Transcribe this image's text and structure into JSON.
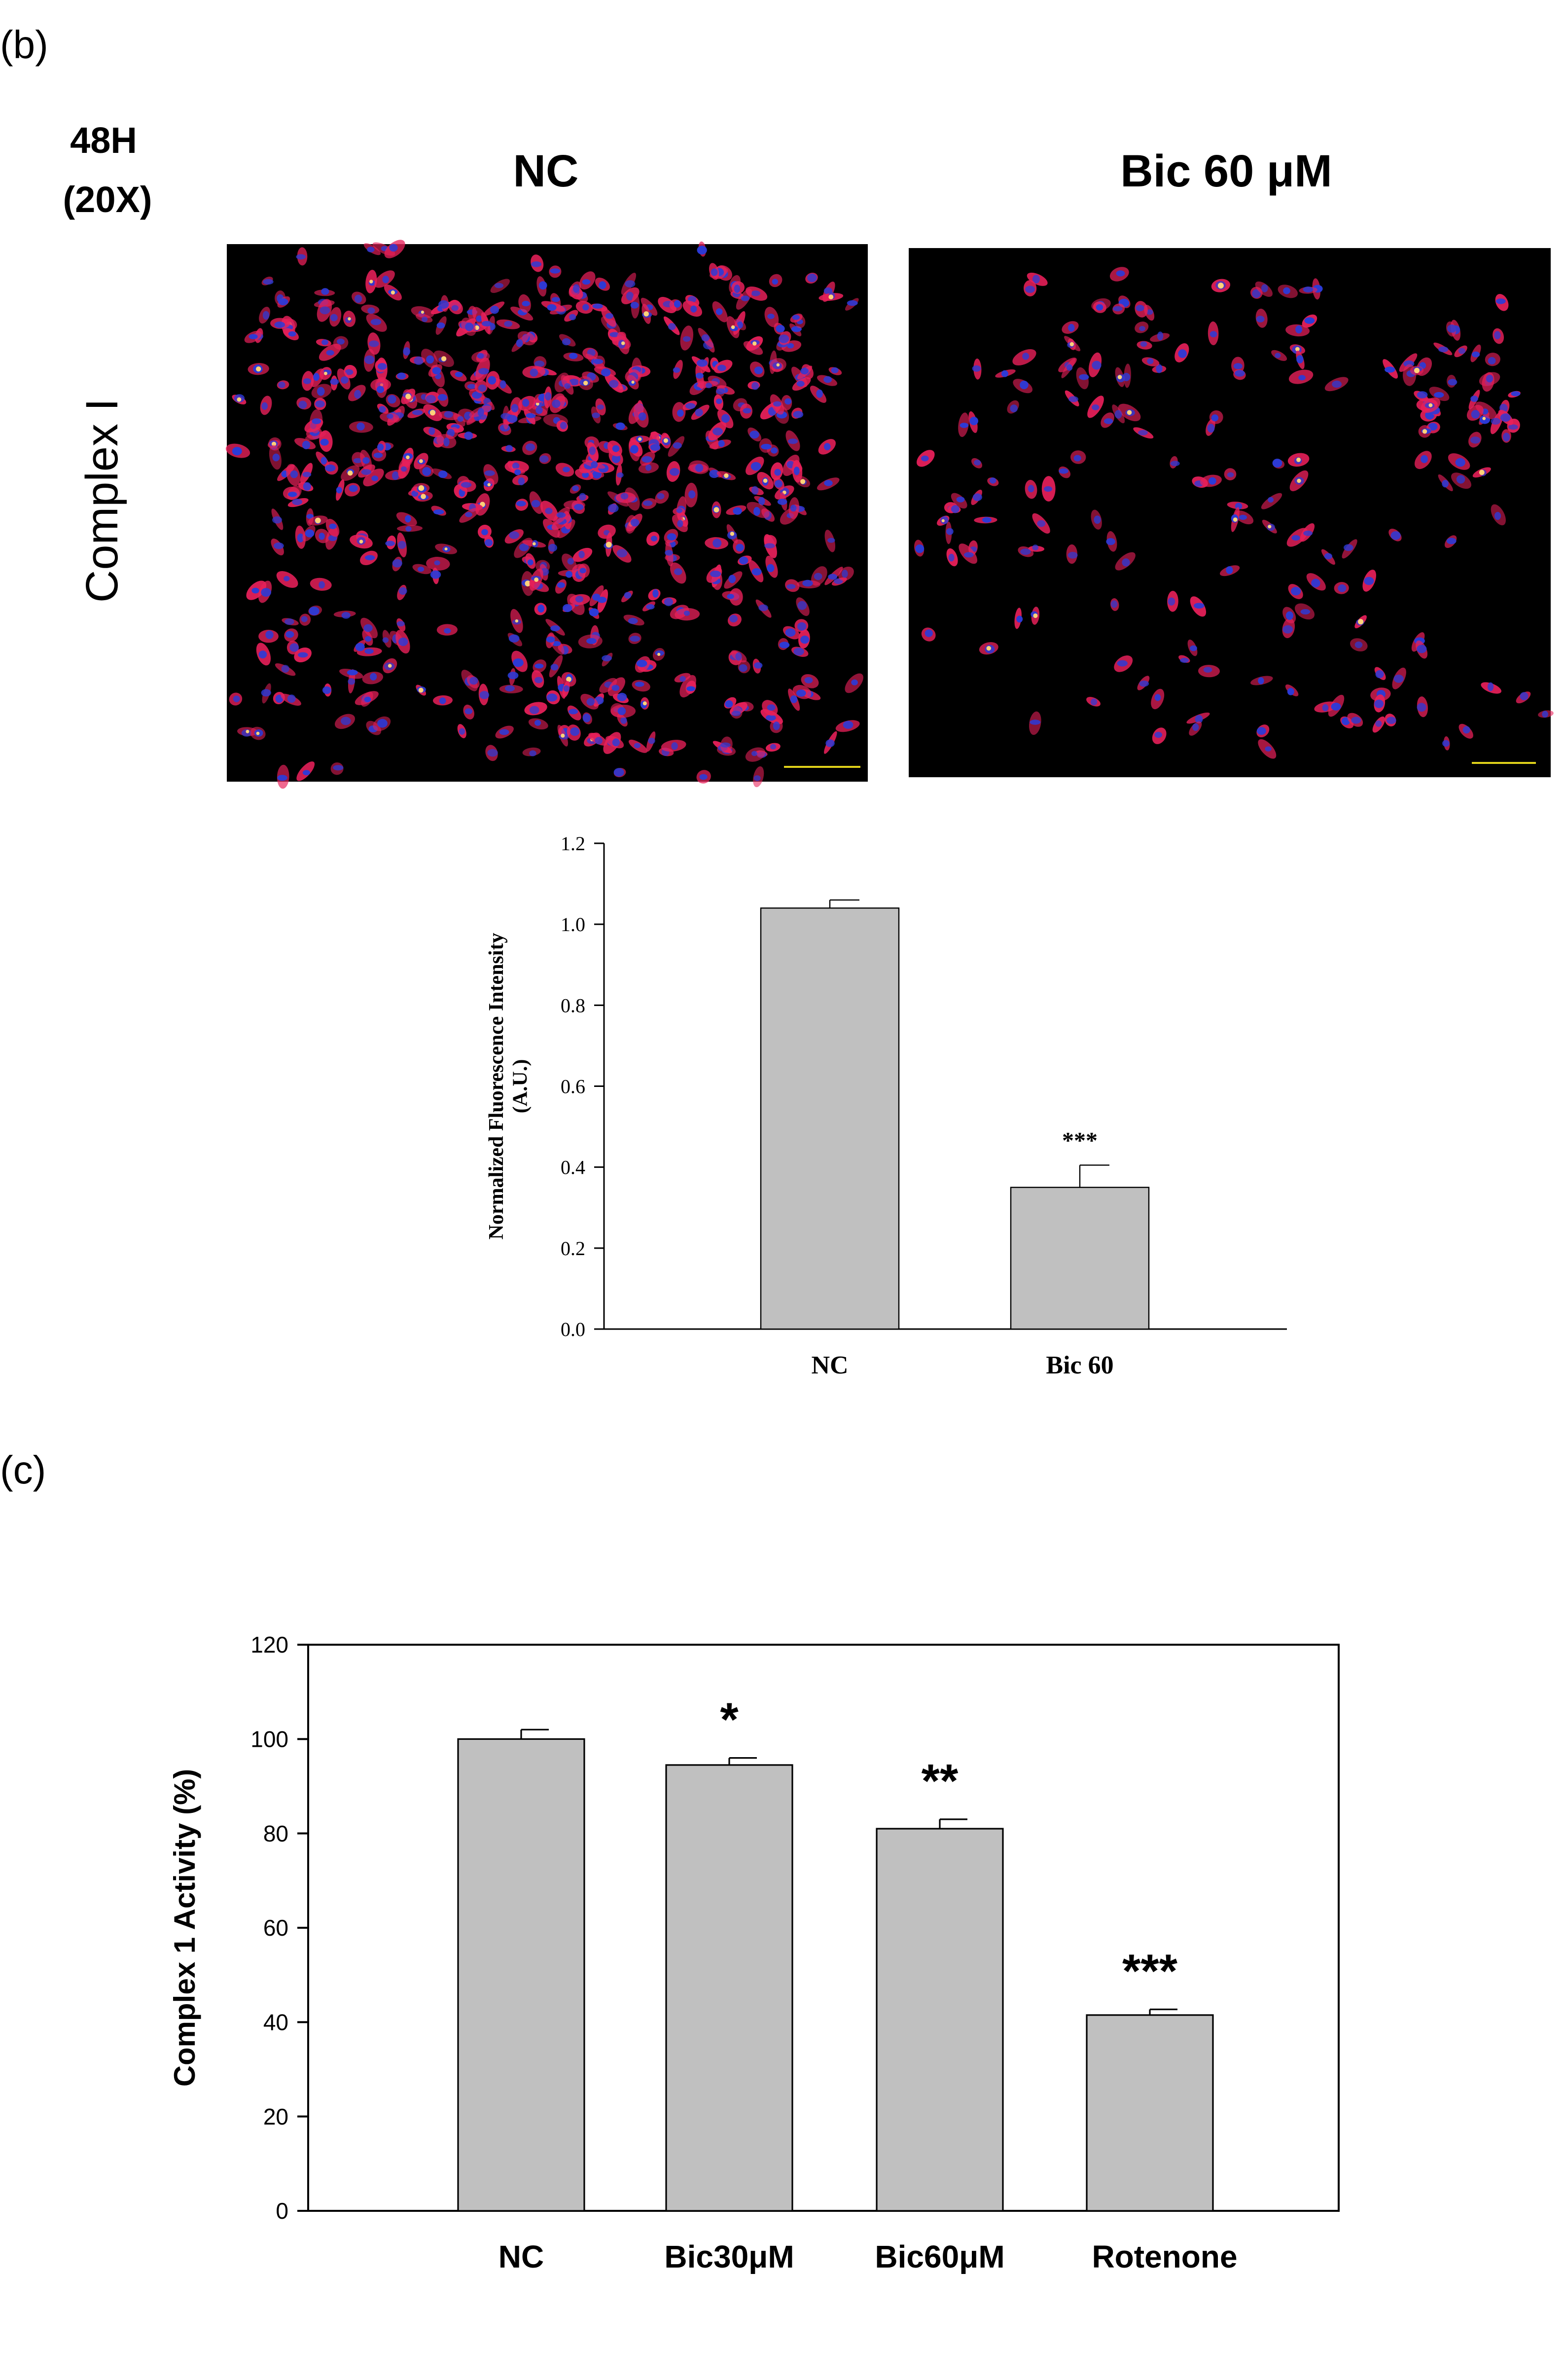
{
  "panel_b": {
    "label": "(b)",
    "time": "48H",
    "magnification": "(20X)",
    "row_label": "Complex I",
    "col_left": "NC",
    "col_right": "Bic 60 μM",
    "colors": {
      "cell_red": "#e8205a",
      "nucleus_blue": "#2b3bd8",
      "background": "#000000",
      "scalebar": "#e0d21a"
    }
  },
  "panel_c": {
    "label": "(c)"
  },
  "chart_data": [
    {
      "type": "bar",
      "categories": [
        "NC",
        "Bic 60"
      ],
      "values": [
        1.04,
        0.35
      ],
      "errors": [
        0.02,
        0.055
      ],
      "annotations": [
        "",
        "***"
      ],
      "ylabel": "Normalized Fluorescence Intensity",
      "ylabel2": "(A.U.)",
      "ylim": [
        0,
        1.2
      ],
      "yticks": [
        0.0,
        0.2,
        0.4,
        0.6,
        0.8,
        1.0,
        1.2
      ],
      "ytick_labels": [
        "0.0",
        "0.2",
        "0.4",
        "0.6",
        "0.8",
        "1.0",
        "1.2"
      ],
      "bar_color": "#c0c0c0",
      "grid": false
    },
    {
      "type": "bar",
      "categories": [
        "NC",
        "Bic30μM",
        "Bic60μM",
        "Rotenone"
      ],
      "values": [
        100,
        94.5,
        81,
        41.5
      ],
      "errors": [
        2,
        1.5,
        2,
        1.2
      ],
      "annotations": [
        "",
        "*",
        "**",
        "***"
      ],
      "ylabel": "Complex 1 Activity (%)",
      "ylim": [
        0,
        120
      ],
      "yticks": [
        0,
        20,
        40,
        60,
        80,
        100,
        120
      ],
      "ytick_labels": [
        "0",
        "20",
        "40",
        "60",
        "80",
        "100",
        "120"
      ],
      "bar_color": "#c0c0c0",
      "grid": false
    }
  ]
}
